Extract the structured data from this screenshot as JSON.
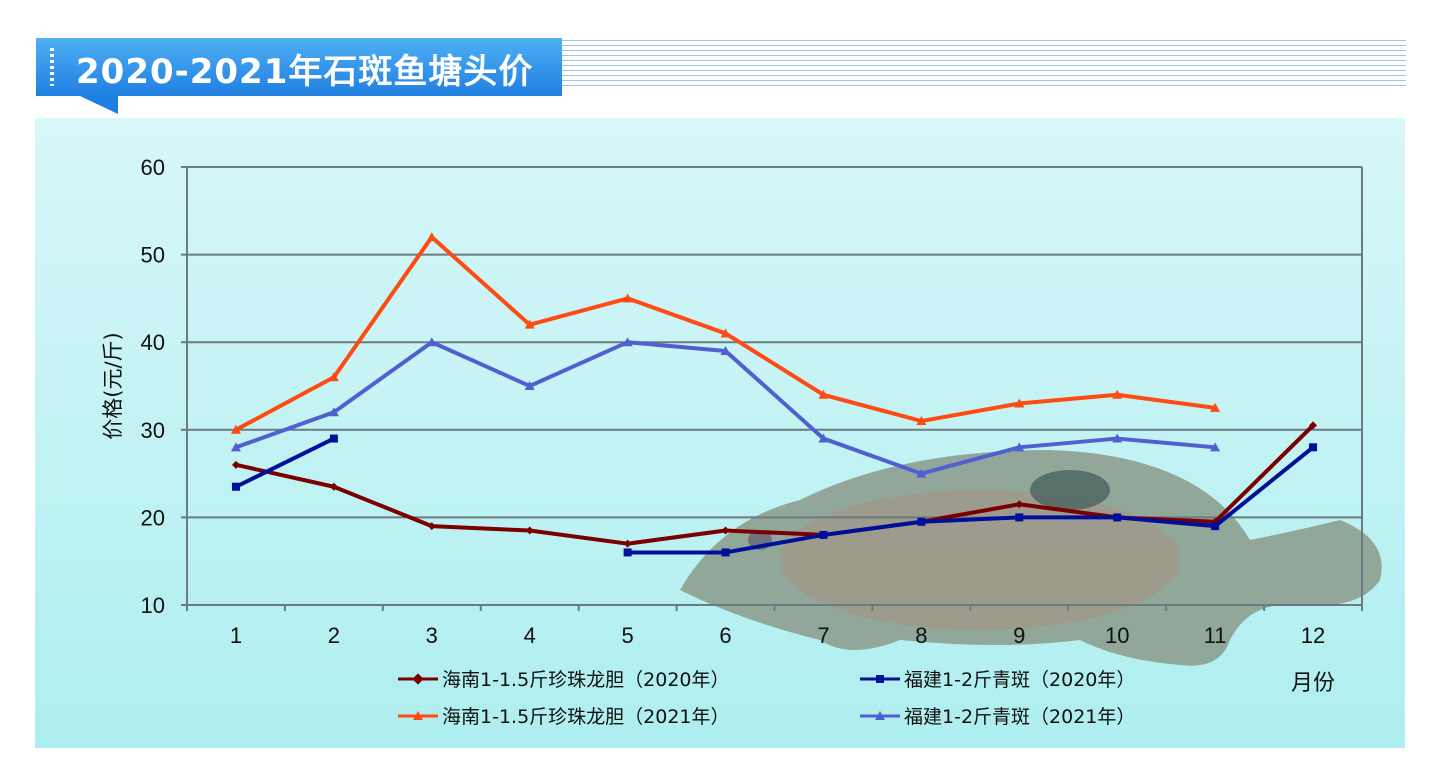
{
  "header": {
    "title": "2020-2021年石斑鱼塘头价"
  },
  "chart_data": {
    "type": "line",
    "title": "2020-2021年石斑鱼塘头价",
    "xlabel": "月份",
    "ylabel": "价格(元/斤)",
    "categories": [
      "1",
      "2",
      "3",
      "4",
      "5",
      "6",
      "7",
      "8",
      "9",
      "10",
      "11",
      "12"
    ],
    "ylim": [
      10,
      60
    ],
    "yticks": [
      10,
      20,
      30,
      40,
      50,
      60
    ],
    "grid": true,
    "legend_placement": "bottom",
    "series": [
      {
        "name": "海南1-1.5斤珍珠龙胆（2020年）",
        "color": "#7a0000",
        "marker": "diamond",
        "values": [
          26,
          23.5,
          19,
          18.5,
          17,
          18.5,
          18,
          19.5,
          21.5,
          20,
          19.5,
          30.5
        ]
      },
      {
        "name": "福建1-2斤青斑（2020年）",
        "color": "#000f99",
        "marker": "square",
        "values": [
          23.5,
          29,
          null,
          null,
          16,
          16,
          18,
          19.5,
          20,
          20,
          19,
          28
        ]
      },
      {
        "name": "海南1-1.5斤珍珠龙胆（2021年）",
        "color": "#ff4a12",
        "marker": "triangle",
        "values": [
          30,
          36,
          52,
          42,
          45,
          41,
          34,
          31,
          33,
          34,
          32.5,
          null
        ]
      },
      {
        "name": "福建1-2斤青斑（2021年）",
        "color": "#5060d0",
        "marker": "triangle",
        "values": [
          28,
          32,
          40,
          35,
          40,
          39,
          29,
          25,
          28,
          29,
          28,
          null
        ]
      }
    ]
  }
}
